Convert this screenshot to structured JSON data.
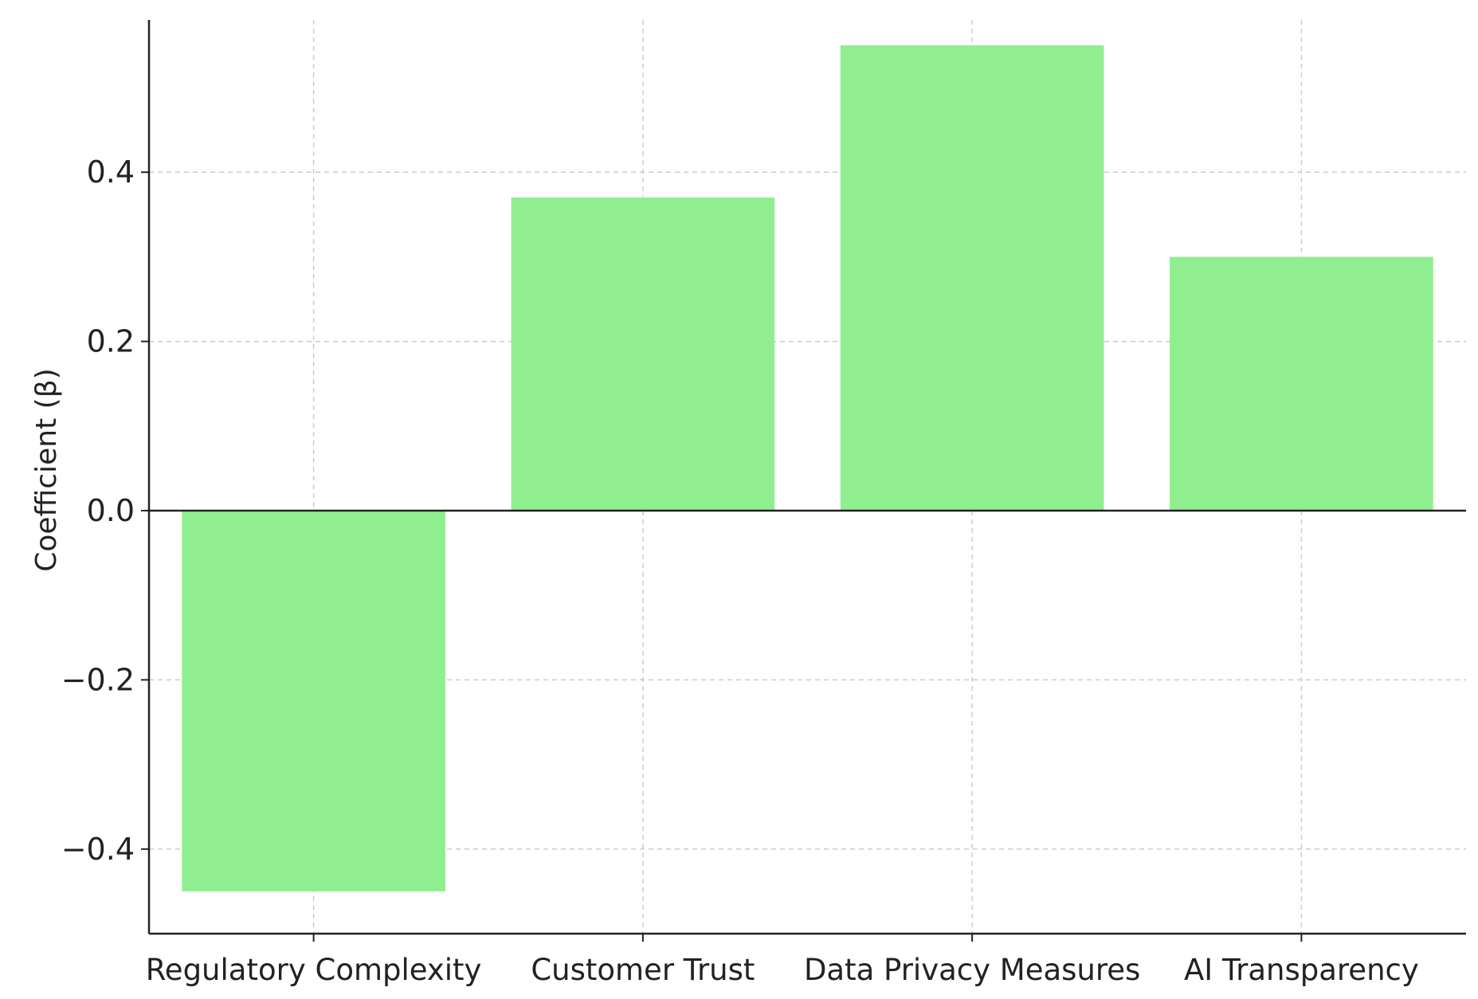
{
  "chart_data": {
    "type": "bar",
    "title": "",
    "xlabel": "",
    "ylabel": "Coefficient (β)",
    "categories": [
      "Regulatory Complexity",
      "Customer Trust",
      "Data Privacy Measures",
      "AI Transparency"
    ],
    "values": [
      -0.45,
      0.37,
      0.55,
      0.3
    ],
    "ylim": [
      -0.5,
      0.58
    ],
    "yticks": [
      -0.4,
      -0.2,
      0.0,
      0.2,
      0.4
    ],
    "ytick_labels": [
      "−0.4",
      "−0.2",
      "0.0",
      "0.2",
      "0.4"
    ],
    "grid": true,
    "zero_line": true,
    "legend": "none",
    "colors": {
      "bar": "#90ee90",
      "grid": "#cccccc",
      "axis": "#222222",
      "zero_line": "#222222"
    }
  }
}
